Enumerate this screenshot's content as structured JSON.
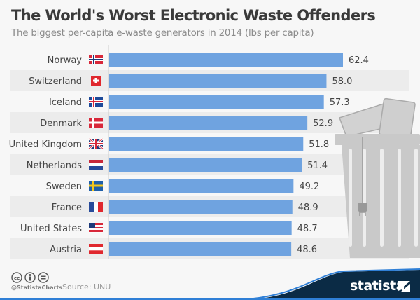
{
  "chart_data": {
    "type": "bar",
    "orientation": "horizontal",
    "title": "The World's Worst Electronic Waste Offenders",
    "subtitle": "The biggest per-capita e-waste generators in 2014 (lbs per capita)",
    "categories": [
      "Norway",
      "Switzerland",
      "Iceland",
      "Denmark",
      "United Kingdom",
      "Netherlands",
      "Sweden",
      "France",
      "United States",
      "Austria"
    ],
    "values": [
      62.4,
      58.0,
      57.3,
      52.9,
      51.8,
      51.4,
      49.2,
      48.9,
      48.7,
      48.6
    ],
    "value_labels": [
      "62.4",
      "58.0",
      "57.3",
      "52.9",
      "51.8",
      "51.4",
      "49.2",
      "48.9",
      "48.7",
      "48.6"
    ],
    "flag_icons": [
      "flag-norway-icon",
      "flag-switzerland-icon",
      "flag-iceland-icon",
      "flag-denmark-icon",
      "flag-uk-icon",
      "flag-netherlands-icon",
      "flag-sweden-icon",
      "flag-france-icon",
      "flag-usa-icon",
      "flag-austria-icon"
    ],
    "xlim": [
      0,
      62.4
    ],
    "grid": false,
    "bar_color": "#6fa3e0"
  },
  "footer": {
    "handle": "@StatistaCharts",
    "source": "Source: UNU",
    "brand": "statista",
    "brand_color": "#0b2b45"
  }
}
